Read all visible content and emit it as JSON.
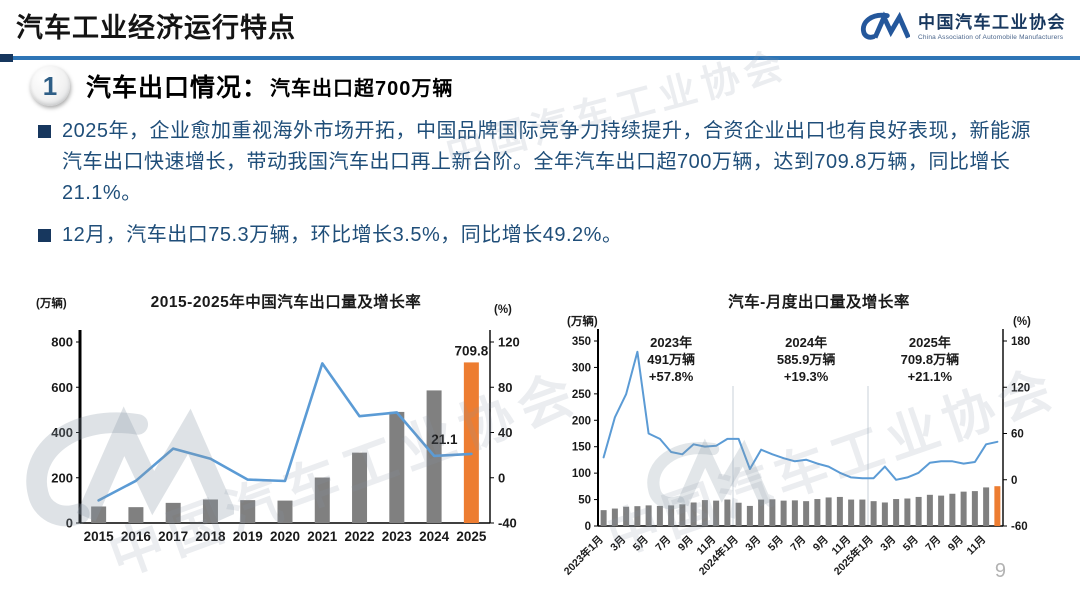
{
  "header": {
    "title": "汽车工业经济运行特点",
    "logo": {
      "cn": "中国汽车工业协会",
      "en": "China Association of Automobile Manufacturers"
    }
  },
  "section": {
    "number": "1",
    "title": "汽车出口情况：",
    "subtitle": "汽车出口超700万辆"
  },
  "bullets": [
    "2025年，企业愈加重视海外市场开拓，中国品牌国际竞争力持续提升，合资企业出口也有良好表现，新能源汽车出口快速增长，带动我国汽车出口再上新台阶。全年汽车出口超700万辆，达到709.8万辆，同比增长21.1%。",
    "12月，汽车出口75.3万辆，环比增长3.5%，同比增长49.2%。"
  ],
  "watermark": {
    "text": "中国汽车工业协会"
  },
  "page": {
    "number": "9"
  },
  "colors": {
    "accent_blue": "#2E75B6",
    "navy": "#17375E",
    "body_text": "#1F4E79",
    "bar_gray": "#808080",
    "bar_orange": "#ED7D31",
    "line_blue": "#5B9BD5"
  },
  "chart_data": [
    {
      "type": "bar",
      "subtype": "bar+line combo",
      "title": "2015-2025年中国汽车出口量及增长率",
      "left_axis_label": "(万辆)",
      "right_axis_label": "(%)",
      "categories": [
        "2015",
        "2016",
        "2017",
        "2018",
        "2019",
        "2020",
        "2021",
        "2022",
        "2023",
        "2024",
        "2025"
      ],
      "series": [
        {
          "name": "出口量(万辆)",
          "type": "bar",
          "axis": "left",
          "values": [
            73,
            70,
            89,
            104,
            101,
            99,
            201,
            311,
            491,
            586,
            709.8
          ]
        },
        {
          "name": "增长率(%)",
          "type": "line",
          "axis": "right",
          "values": [
            -20,
            -2.7,
            25.8,
            16.8,
            -1.6,
            -2.9,
            101.1,
            54.4,
            57.8,
            19.3,
            21.1
          ]
        }
      ],
      "left_ylim": [
        0,
        800
      ],
      "left_ticks": [
        0,
        200,
        400,
        600,
        800
      ],
      "right_ylim": [
        -40,
        120
      ],
      "right_ticks": [
        -40,
        0,
        40,
        80,
        120
      ],
      "bar_end_label": "709.8",
      "line_end_label": "21.1",
      "highlight_last_bar": true,
      "grid": false,
      "legend": "none",
      "bar_color": "#808080",
      "highlight_color": "#ED7D31",
      "line_color": "#5B9BD5"
    },
    {
      "type": "bar",
      "subtype": "bar+line combo",
      "title": "汽车-月度出口量及增长率",
      "left_axis_label": "(万辆)",
      "right_axis_label": "(%)",
      "x_tick_labels": [
        "2023年1月",
        "3月",
        "5月",
        "7月",
        "9月",
        "11月",
        "2024年1月",
        "3月",
        "5月",
        "7月",
        "9月",
        "11月",
        "2025年1月",
        "3月",
        "5月",
        "7月",
        "9月",
        "11月"
      ],
      "series": [
        {
          "name": "出口量(万辆)",
          "type": "bar",
          "axis": "left",
          "values": [
            30,
            33,
            36.5,
            37.5,
            39,
            38,
            39,
            41,
            44.5,
            49,
            48,
            50,
            44,
            38,
            50,
            50.5,
            48,
            48.5,
            47,
            51,
            54,
            55,
            50,
            50,
            47,
            44.5,
            51,
            52,
            55,
            59,
            57.5,
            61,
            65,
            66,
            73,
            75.3
          ]
        },
        {
          "name": "增长率(%)",
          "type": "line",
          "axis": "right",
          "values": [
            29,
            81,
            111,
            166,
            60,
            53,
            36,
            33,
            46,
            43,
            44,
            53,
            53,
            14,
            39,
            33,
            28,
            24,
            26,
            21,
            17,
            9,
            3,
            2,
            2,
            17,
            0,
            3,
            9,
            22,
            24,
            24,
            21,
            23,
            46,
            49.2
          ]
        }
      ],
      "left_ylim": [
        0,
        350
      ],
      "left_ticks": [
        0,
        50,
        100,
        150,
        200,
        250,
        300,
        350
      ],
      "right_ylim": [
        -60,
        180
      ],
      "right_ticks": [
        -60,
        0,
        60,
        120,
        180
      ],
      "annotations": [
        {
          "lines": [
            "2023年",
            "491万辆",
            "+57.8%"
          ],
          "month_index": 6
        },
        {
          "lines": [
            "2024年",
            "585.9万辆",
            "+19.3%"
          ],
          "month_index": 18
        },
        {
          "lines": [
            "2025年",
            "709.8万辆",
            "+21.1%"
          ],
          "month_index": 29
        }
      ],
      "dividers_month_index": [
        12,
        24
      ],
      "highlight_last_bar": true,
      "grid": false,
      "legend": "none",
      "bar_color": "#808080",
      "highlight_color": "#ED7D31",
      "line_color": "#5B9BD5"
    }
  ]
}
